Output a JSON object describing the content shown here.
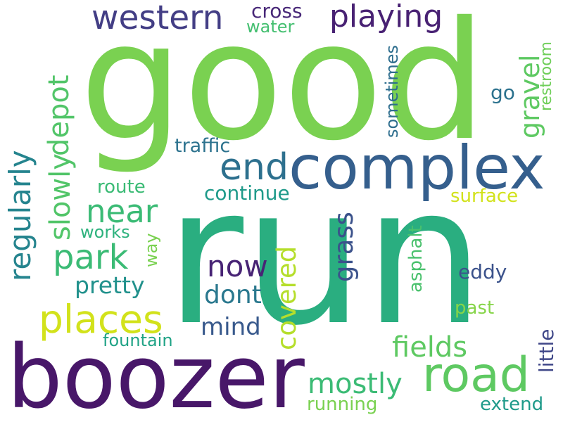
{
  "cloud": {
    "words": {
      "run": {
        "text": "run",
        "color": "#2aae80"
      },
      "good": {
        "text": "good",
        "color": "#7ad151"
      },
      "boozer": {
        "text": "boozer",
        "color": "#481769"
      },
      "complex": {
        "text": "complex",
        "color": "#355f8d"
      },
      "road": {
        "text": "road",
        "color": "#5ec962"
      },
      "western": {
        "text": "western",
        "color": "#433e85"
      },
      "playing": {
        "text": "playing",
        "color": "#482173"
      },
      "places": {
        "text": "places",
        "color": "#d2e21b"
      },
      "end": {
        "text": "end",
        "color": "#2d708e"
      },
      "near": {
        "text": "near",
        "color": "#3bbb75"
      },
      "park": {
        "text": "park",
        "color": "#3bbb75"
      },
      "regularly": {
        "text": "regularly",
        "color": "#25848e"
      },
      "slowly": {
        "text": "slowly",
        "color": "#52c569"
      },
      "depot": {
        "text": "depot",
        "color": "#52c569"
      },
      "gravel": {
        "text": "gravel",
        "color": "#5ec962"
      },
      "now": {
        "text": "now",
        "color": "#482475"
      },
      "dont": {
        "text": "dont",
        "color": "#2a788e"
      },
      "mind": {
        "text": "mind",
        "color": "#38598c"
      },
      "pretty": {
        "text": "pretty",
        "color": "#21918c"
      },
      "covered": {
        "text": "covered",
        "color": "#b5de2b"
      },
      "grass": {
        "text": "grass",
        "color": "#3b528b"
      },
      "fields": {
        "text": "fields",
        "color": "#5ec962"
      },
      "mostly": {
        "text": "mostly",
        "color": "#3bbb75"
      },
      "cross": {
        "text": "cross",
        "color": "#482878"
      },
      "water": {
        "text": "water",
        "color": "#44bf70"
      },
      "traffic": {
        "text": "traffic",
        "color": "#2c728e"
      },
      "route": {
        "text": "route",
        "color": "#3bbb75"
      },
      "continue": {
        "text": "continue",
        "color": "#1f9a8a"
      },
      "works": {
        "text": "works",
        "color": "#2db27d"
      },
      "way": {
        "text": "way",
        "color": "#7ad151"
      },
      "fountain": {
        "text": "fountain",
        "color": "#20a386"
      },
      "sometimes": {
        "text": "sometimes",
        "color": "#2e6e8e"
      },
      "go": {
        "text": "go",
        "color": "#2c728e"
      },
      "surface": {
        "text": "surface",
        "color": "#d2e21b"
      },
      "asphalt": {
        "text": "asphalt",
        "color": "#4ac16d"
      },
      "eddy": {
        "text": "eddy",
        "color": "#3b528b"
      },
      "past": {
        "text": "past",
        "color": "#86d549"
      },
      "little": {
        "text": "little",
        "color": "#3f4788"
      },
      "running": {
        "text": "running",
        "color": "#7ad151"
      },
      "extend": {
        "text": "extend",
        "color": "#1f9a8a"
      },
      "restroom": {
        "text": "restroom",
        "color": "#6ece58"
      }
    }
  }
}
